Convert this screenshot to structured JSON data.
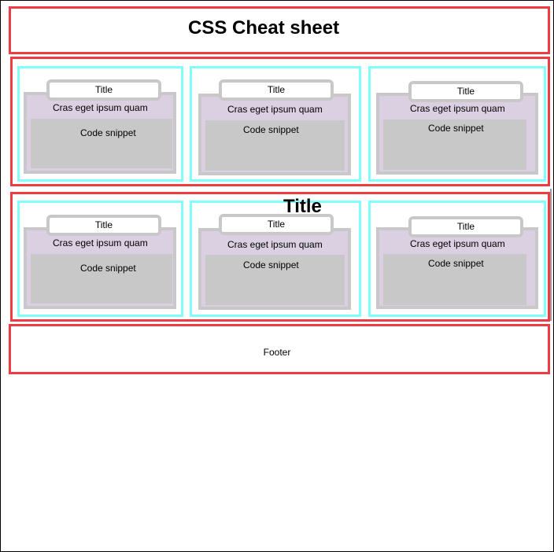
{
  "page": {
    "title": "CSS Cheat sheet",
    "section_title": "Title",
    "footer": "Footer"
  },
  "rows": [
    {
      "cards": [
        {
          "title": "Title",
          "description": "Cras eget ipsum quam",
          "snippet": "Code snippet"
        },
        {
          "title": "Title",
          "description": "Cras eget ipsum quam",
          "snippet": "Code snippet"
        },
        {
          "title": "Title",
          "description": "Cras eget ipsum quam",
          "snippet": "Code snippet"
        }
      ]
    },
    {
      "cards": [
        {
          "title": "Title",
          "description": "Cras eget ipsum quam",
          "snippet": "Code snippet"
        },
        {
          "title": "Title",
          "description": "Cras eget ipsum quam",
          "snippet": "Code snippet"
        },
        {
          "title": "Title",
          "description": "Cras eget ipsum quam",
          "snippet": "Code snippet"
        }
      ]
    }
  ],
  "colors": {
    "layout_border": "#ee3c44",
    "cell_border": "#80ffff",
    "card_background": "#dbd0e2",
    "card_border": "#c8c8c8",
    "snippet_background": "#c8c8c8"
  }
}
